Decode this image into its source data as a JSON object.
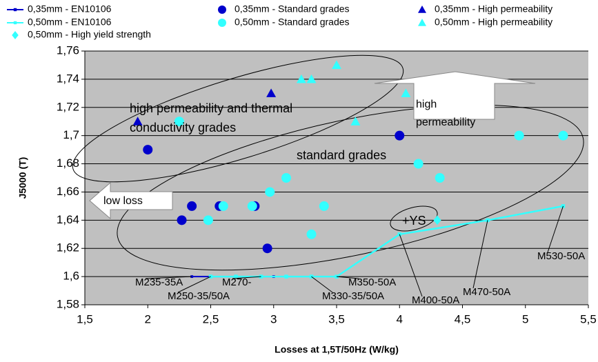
{
  "chart_data": {
    "type": "scatter",
    "x_label": "Losses at 1,5T/50Hz (W/kg)",
    "y_label": "J5000 (T)",
    "xlim": [
      1.5,
      5.5
    ],
    "ylim": [
      1.58,
      1.76
    ],
    "xticks": [
      {
        "value": 1.5,
        "label": "1,5"
      },
      2,
      {
        "value": 2.5,
        "label": "2,5"
      },
      3,
      {
        "value": 3.5,
        "label": "3,5"
      },
      4,
      {
        "value": 4.5,
        "label": "4,5"
      },
      5,
      {
        "value": 5.5,
        "label": "5,5"
      }
    ],
    "yticks": [
      {
        "value": 1.58,
        "label": "1,58"
      },
      {
        "value": 1.6,
        "label": "1,6"
      },
      {
        "value": 1.62,
        "label": "1,62"
      },
      {
        "value": 1.64,
        "label": "1,64"
      },
      {
        "value": 1.66,
        "label": "1,66"
      },
      {
        "value": 1.68,
        "label": "1,68"
      },
      {
        "value": 1.7,
        "label": "1,7"
      },
      {
        "value": 1.72,
        "label": "1,72"
      },
      {
        "value": 1.74,
        "label": "1,74"
      },
      {
        "value": 1.76,
        "label": "1,76"
      }
    ],
    "grid": true,
    "series": [
      {
        "name": "0,35mm - EN10106",
        "color": "#0000cc",
        "marker": "square",
        "line": true,
        "x": [
          2.35,
          3.0
        ],
        "values": [
          1.6,
          1.6
        ]
      },
      {
        "name": "0,50mm - EN10106",
        "color": "#33ffff",
        "marker": "square",
        "line": true,
        "x": [
          2.5,
          2.7,
          2.9,
          3.1,
          3.3,
          3.5,
          4.0,
          4.7,
          5.3
        ],
        "values": [
          1.6,
          1.6,
          1.6,
          1.6,
          1.6,
          1.6,
          1.63,
          1.64,
          1.65
        ]
      },
      {
        "name": "0,35mm - Standard grades",
        "color": "#0000cc",
        "marker": "circle",
        "x": [
          2.0,
          2.35,
          2.27,
          2.57,
          2.85,
          2.95,
          4.0
        ],
        "values": [
          1.69,
          1.65,
          1.64,
          1.65,
          1.65,
          1.62,
          1.7
        ]
      },
      {
        "name": "0,50mm - Standard grades",
        "color": "#33ffff",
        "marker": "circle",
        "x": [
          2.25,
          2.48,
          2.6,
          2.83,
          2.97,
          3.1,
          3.3,
          3.4,
          4.15,
          4.32,
          4.95,
          5.3
        ],
        "values": [
          1.71,
          1.64,
          1.65,
          1.65,
          1.66,
          1.67,
          1.63,
          1.65,
          1.68,
          1.67,
          1.7,
          1.7
        ]
      },
      {
        "name": "0,35mm - High permeability",
        "color": "#0000cc",
        "marker": "triangle",
        "x": [
          1.92,
          2.98
        ],
        "values": [
          1.71,
          1.73
        ]
      },
      {
        "name": "0,50mm - High permeability",
        "color": "#33ffff",
        "marker": "triangle",
        "x": [
          3.22,
          3.3,
          3.5,
          4.05,
          3.65
        ],
        "values": [
          1.74,
          1.74,
          1.75,
          1.73,
          1.71
        ]
      },
      {
        "name": "0,50mm - High yield strength",
        "color": "#33ffff",
        "marker": "diamond",
        "x": [
          4.3
        ],
        "values": [
          1.64
        ]
      }
    ],
    "grade_labels": [
      "M235-35A",
      "M250-35/50A",
      "M270-",
      "M330-35/50A",
      "M350-50A",
      "M400-50A",
      "M470-50A",
      "M530-50A"
    ],
    "annotations": [
      "high permeability and thermal",
      "conductivity grades",
      "standard grades",
      "low loss",
      "high",
      "permeability",
      "+YS"
    ]
  }
}
